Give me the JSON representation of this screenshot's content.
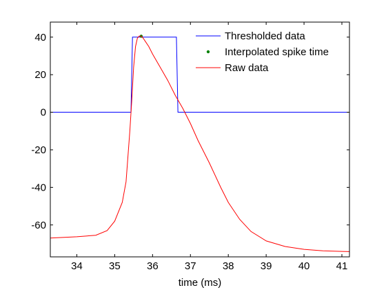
{
  "chart_data": {
    "type": "line",
    "xlabel": "time (ms)",
    "ylabel": "",
    "title": "",
    "xlim": [
      33.3,
      41.2
    ],
    "ylim": [
      -77,
      48
    ],
    "xticks": [
      34,
      35,
      36,
      37,
      38,
      39,
      40,
      41
    ],
    "yticks": [
      -60,
      -40,
      -20,
      0,
      20,
      40
    ],
    "grid": false,
    "legend_position": "top-right",
    "series": [
      {
        "name": "Thresholded data",
        "style": "line",
        "color": "#0000ff",
        "x": [
          33.3,
          35.43,
          35.47,
          36.63,
          36.67,
          41.2
        ],
        "y": [
          0,
          0,
          40,
          40,
          0,
          0
        ]
      },
      {
        "name": "Interpolated spike time",
        "style": "marker",
        "color": "#008000",
        "x": [
          35.7
        ],
        "y": [
          40.5
        ]
      },
      {
        "name": "Raw data",
        "style": "line",
        "color": "#ff0000",
        "x": [
          33.3,
          34.0,
          34.5,
          34.8,
          35.0,
          35.2,
          35.3,
          35.4,
          35.45,
          35.5,
          35.55,
          35.6,
          35.65,
          35.7,
          35.75,
          35.8,
          35.9,
          36.0,
          36.2,
          36.4,
          36.6,
          36.8,
          37.0,
          37.2,
          37.5,
          37.8,
          38.0,
          38.3,
          38.6,
          39.0,
          39.5,
          40.0,
          40.5,
          41.0,
          41.2
        ],
        "y": [
          -67,
          -66.3,
          -65.5,
          -63,
          -58,
          -48,
          -37,
          -10,
          6,
          24,
          35,
          39.5,
          40.6,
          40.5,
          39.5,
          38,
          35,
          31,
          24,
          17,
          9,
          2,
          -6,
          -15,
          -27,
          -40,
          -48,
          -57,
          -63.5,
          -68.5,
          -71.5,
          -73,
          -73.8,
          -74.1,
          -74.2
        ]
      }
    ]
  }
}
